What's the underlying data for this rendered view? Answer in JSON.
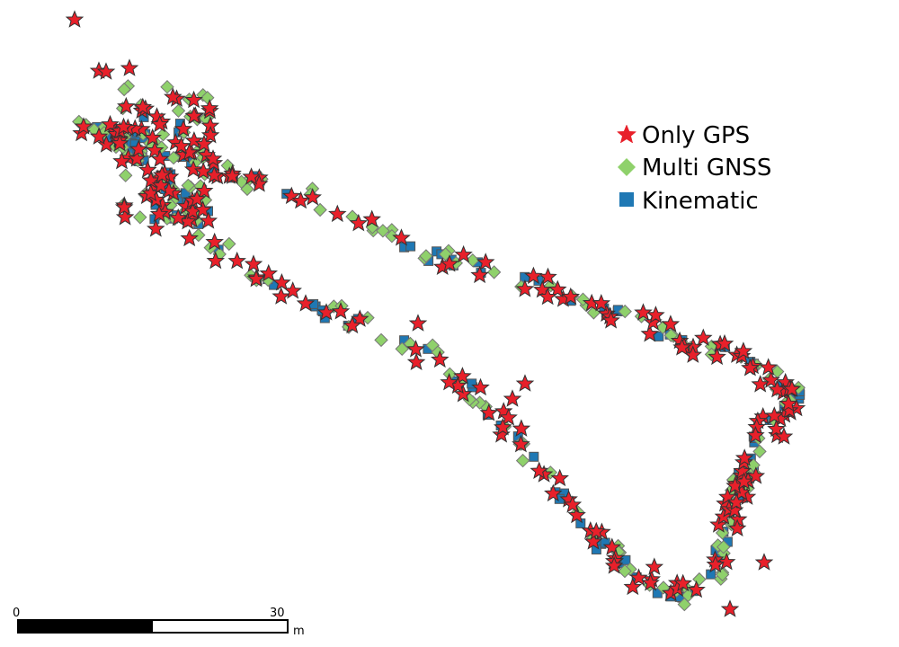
{
  "legend": {
    "items": [
      {
        "label": "Only GPS",
        "symbol": "star",
        "color": "#e8202a"
      },
      {
        "label": "Multi GNSS",
        "symbol": "diamond",
        "color": "#8fd16b"
      },
      {
        "label": "Kinematic",
        "symbol": "square",
        "color": "#1f78b4"
      }
    ]
  },
  "scale_bar": {
    "start_label": "0",
    "end_label": "30",
    "unit": "m"
  }
}
